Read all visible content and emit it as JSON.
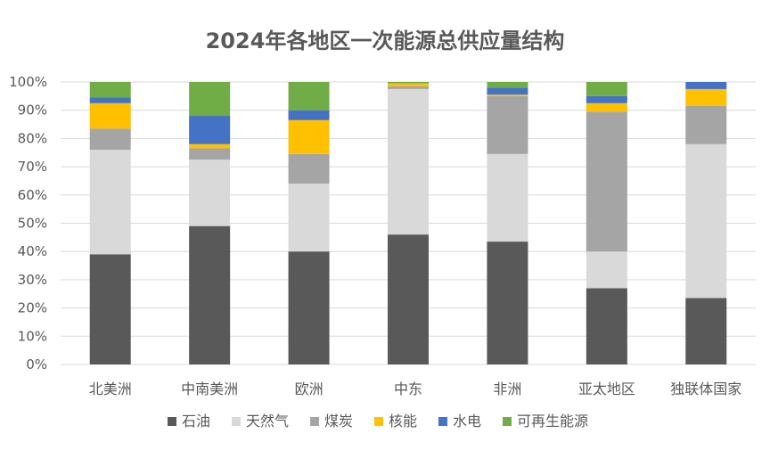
{
  "chart_data": {
    "type": "bar",
    "stacked": true,
    "title": "2024年各地区一次能源总供应量结构",
    "categories": [
      "北美洲",
      "中南美洲",
      "欧洲",
      "中东",
      "非洲",
      "亚太地区",
      "独联体国家"
    ],
    "ylim": [
      0,
      100
    ],
    "yticks": [
      "0%",
      "10%",
      "20%",
      "30%",
      "40%",
      "50%",
      "60%",
      "70%",
      "80%",
      "90%",
      "100%"
    ],
    "grid": true,
    "legend_position": "bottom",
    "series": [
      {
        "name": "石油",
        "color": "#595959",
        "values": [
          39,
          49,
          40,
          46,
          43.5,
          27,
          23.5
        ]
      },
      {
        "name": "天然气",
        "color": "#d9d9d9",
        "values": [
          37,
          23.5,
          24,
          51.5,
          31,
          13,
          54.5
        ]
      },
      {
        "name": "煤炭",
        "color": "#a5a5a5",
        "values": [
          7.5,
          4,
          10.5,
          1,
          20.5,
          49.5,
          13.5
        ]
      },
      {
        "name": "核能",
        "color": "#ffc000",
        "values": [
          9,
          1.5,
          12,
          1,
          0.5,
          3,
          6
        ]
      },
      {
        "name": "水电",
        "color": "#4472c4",
        "values": [
          2,
          10,
          3.5,
          0,
          2.5,
          2.5,
          2.5
        ]
      },
      {
        "name": "可再生能源",
        "color": "#70ad47",
        "values": [
          5.5,
          12,
          10,
          0.5,
          2,
          5,
          0
        ]
      }
    ]
  }
}
